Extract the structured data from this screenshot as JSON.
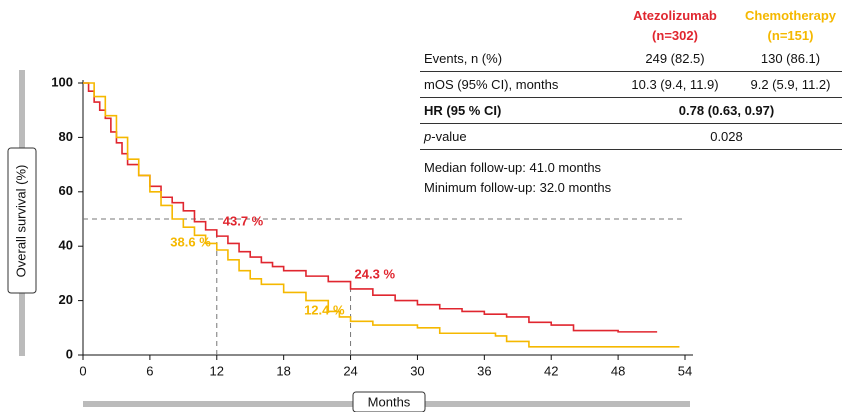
{
  "chart_data": {
    "type": "line",
    "step": true,
    "y_label": "Overall survival (%)",
    "x_label": "Months",
    "xlim": [
      0,
      54
    ],
    "xticks": [
      0,
      6,
      12,
      18,
      24,
      30,
      36,
      42,
      48,
      54
    ],
    "ylim": [
      0,
      100
    ],
    "yticks": [
      0,
      20,
      40,
      60,
      80,
      100
    ],
    "series": [
      {
        "name": "Atezolizumab",
        "color": "#e0262f",
        "x": [
          0,
          0.5,
          1,
          1.5,
          2,
          2.5,
          3,
          3.5,
          4,
          5,
          6,
          7,
          8,
          9,
          10,
          11,
          12,
          13,
          14,
          15,
          16,
          17,
          18,
          20,
          22,
          24,
          26,
          28,
          30,
          32,
          34,
          36,
          38,
          40,
          42,
          44,
          48,
          51.5
        ],
        "values": [
          100,
          97,
          93,
          90,
          87,
          82,
          78,
          74,
          70,
          66,
          62,
          58,
          56,
          53,
          49,
          46,
          43.7,
          41,
          38,
          36,
          34,
          32.5,
          31,
          29,
          27,
          24.3,
          22,
          20,
          18.5,
          17,
          16,
          15,
          14,
          12,
          11,
          9,
          8.5,
          8.5
        ]
      },
      {
        "name": "Chemotherapy",
        "color": "#f5b800",
        "x": [
          0,
          1,
          2,
          3,
          4,
          5,
          6,
          7,
          8,
          9,
          10,
          11,
          12,
          13,
          14,
          15,
          16,
          18,
          20,
          22,
          23,
          24,
          26,
          30,
          32,
          37,
          38,
          40,
          42,
          53.5
        ],
        "values": [
          100,
          95,
          88,
          80,
          72,
          66,
          60,
          55,
          50,
          47,
          44,
          41,
          38.6,
          35,
          31,
          28,
          26,
          23,
          20,
          16,
          14,
          12.4,
          11,
          10,
          8,
          7,
          5,
          3,
          3,
          3
        ]
      }
    ],
    "reference_lines": {
      "y": 50,
      "x": [
        12,
        24
      ]
    },
    "annotations": [
      {
        "text": "43.7 %",
        "x": 12,
        "y": 43.7,
        "color": "#e0262f"
      },
      {
        "text": "38.6 %",
        "x": 12,
        "y": 38.6,
        "color": "#f5b800"
      },
      {
        "text": "24.3 %",
        "x": 24,
        "y": 24.3,
        "color": "#e0262f"
      },
      {
        "text": "12.4 %",
        "x": 24,
        "y": 12.4,
        "color": "#f5b800"
      }
    ],
    "table": {
      "columns": [
        "Atezolizumab (n=302)",
        "Chemotherapy (n=151)"
      ],
      "rows": [
        [
          "Events, n (%)",
          "249 (82.5)",
          "130 (86.1)"
        ],
        [
          "mOS (95% CI), months",
          "10.3 (9.4, 11.9)",
          "9.2 (5.9, 11.2)"
        ],
        [
          "HR (95 % CI)",
          "0.78 (0.63, 0.97)"
        ],
        [
          "p-value",
          "0.028"
        ]
      ],
      "notes": [
        "Median follow-up: 41.0 months",
        "Minimum follow-up: 32.0 months"
      ]
    }
  }
}
